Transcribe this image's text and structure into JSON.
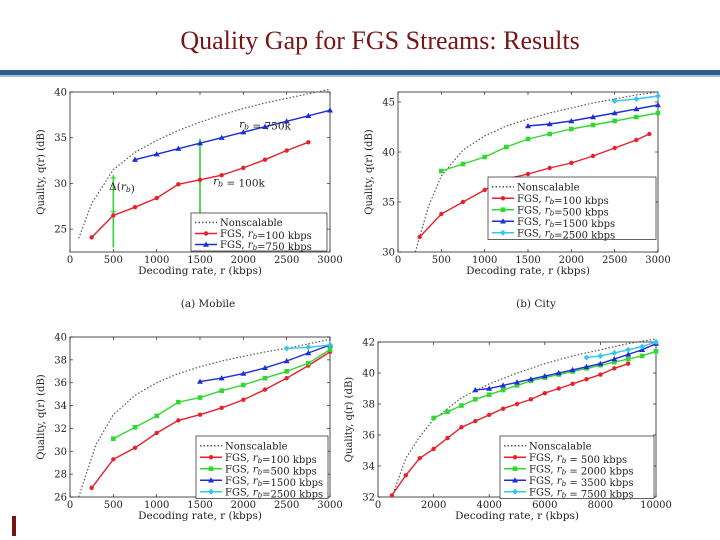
{
  "slide": {
    "title": "Quality Gap for FGS Streams: Results"
  },
  "colors": {
    "title": "#7a1414",
    "rule": "#2e5c93",
    "nonscalable": "#555555",
    "red": "#e8202a",
    "green": "#33d633",
    "blue": "#1c2fd6",
    "cyan": "#35c8ea",
    "annotation_green": "#2fd12f"
  },
  "chart_data": [
    {
      "id": "mobile",
      "type": "line",
      "caption": "(a) Mobile",
      "xlabel": "Decoding rate, r (kbps)",
      "ylabel": "Quality, q(r) (dB)",
      "xlim": [
        0,
        3000
      ],
      "ylim": [
        22.5,
        40
      ],
      "xticks": [
        0,
        500,
        1000,
        1500,
        2000,
        2500,
        3000
      ],
      "yticks": [
        25,
        30,
        35,
        40
      ],
      "legend_position": "bottom-right",
      "series": [
        {
          "name": "Nonscalable",
          "color": "nonscalable",
          "style": "dotted",
          "marker": "none",
          "x": [
            100,
            250,
            500,
            750,
            1000,
            1250,
            1500,
            1750,
            2000,
            2250,
            2500,
            2750,
            3000
          ],
          "y": [
            24,
            27.8,
            31.5,
            33.4,
            34.7,
            35.8,
            36.7,
            37.5,
            38.2,
            38.8,
            39.3,
            39.8,
            40.3
          ]
        },
        {
          "name": "FGS, r_b=100 kbps",
          "color": "red",
          "style": "solid",
          "marker": "circle",
          "x": [
            250,
            500,
            750,
            1000,
            1250,
            1500,
            1750,
            2000,
            2250,
            2500,
            2750
          ],
          "y": [
            24.1,
            26.5,
            27.4,
            28.4,
            29.9,
            30.4,
            30.9,
            31.7,
            32.6,
            33.6,
            34.5
          ]
        },
        {
          "name": "FGS, r_b=750 kbps",
          "color": "blue",
          "style": "solid",
          "marker": "triangle",
          "x": [
            750,
            1000,
            1250,
            1500,
            1750,
            2000,
            2250,
            2500,
            2750,
            3000
          ],
          "y": [
            32.6,
            33.2,
            33.8,
            34.4,
            35.0,
            35.6,
            36.2,
            36.8,
            37.4,
            38.0
          ]
        }
      ],
      "annotations": [
        {
          "label": "r_b = 750k",
          "x": 2250,
          "y": 36.1
        },
        {
          "label": "r_b = 100k",
          "x": 1950,
          "y": 29.9
        },
        {
          "label": "Δ(r_b)",
          "x": 600,
          "y": 29.3
        }
      ],
      "guides": [
        {
          "x": 500,
          "y_from": 23,
          "y_to": 30.9
        },
        {
          "x": 1500,
          "y_from": 23,
          "y_to": 34.9
        }
      ]
    },
    {
      "id": "city",
      "type": "line",
      "caption": "(b) City",
      "xlabel": "Decoding rate, r (kbps)",
      "ylabel": "Quality, q(r) (dB)",
      "xlim": [
        0,
        3000
      ],
      "ylim": [
        30,
        46
      ],
      "xticks": [
        0,
        500,
        1000,
        1500,
        2000,
        2500,
        3000
      ],
      "yticks": [
        30,
        35,
        40,
        45
      ],
      "legend_position": "bottom-right",
      "series": [
        {
          "name": "Nonscalable",
          "color": "nonscalable",
          "style": "dotted",
          "marker": "none",
          "x": [
            200,
            350,
            500,
            750,
            1000,
            1250,
            1500,
            1750,
            2000,
            2250,
            2500,
            2750,
            3000
          ],
          "y": [
            30,
            34.5,
            37.6,
            40.2,
            41.6,
            42.6,
            43.3,
            43.9,
            44.4,
            44.9,
            45.3,
            45.7,
            46.0
          ]
        },
        {
          "name": "FGS, r_b=100 kbps",
          "color": "red",
          "style": "solid",
          "marker": "circle",
          "x": [
            250,
            500,
            750,
            1000,
            1250,
            1500,
            1750,
            2000,
            2250,
            2500,
            2750,
            2900
          ],
          "y": [
            31.5,
            33.8,
            35.0,
            36.2,
            37.3,
            37.8,
            38.4,
            38.9,
            39.6,
            40.4,
            41.2,
            41.8
          ]
        },
        {
          "name": "FGS, r_b=500 kbps",
          "color": "green",
          "style": "solid",
          "marker": "square",
          "x": [
            500,
            750,
            1000,
            1250,
            1500,
            1750,
            2000,
            2250,
            2500,
            2750,
            3000
          ],
          "y": [
            38.1,
            38.8,
            39.5,
            40.5,
            41.3,
            41.8,
            42.3,
            42.7,
            43.1,
            43.5,
            43.9
          ]
        },
        {
          "name": "FGS, r_b=1500 kbps",
          "color": "blue",
          "style": "solid",
          "marker": "triangle",
          "x": [
            1500,
            1750,
            2000,
            2250,
            2500,
            2750,
            3000
          ],
          "y": [
            42.6,
            42.8,
            43.1,
            43.5,
            43.9,
            44.3,
            44.7
          ]
        },
        {
          "name": "FGS, r_b=2500 kbps",
          "color": "cyan",
          "style": "solid",
          "marker": "diamond",
          "x": [
            2500,
            2750,
            3000
          ],
          "y": [
            45.1,
            45.3,
            45.6
          ]
        }
      ]
    },
    {
      "id": "panel-c",
      "type": "line",
      "caption": "",
      "xlabel": "Decoding rate, r (kbps)",
      "ylabel": "Quality, q(r) (dB)",
      "xlim": [
        0,
        3000
      ],
      "ylim": [
        26,
        40
      ],
      "xticks": [
        0,
        500,
        1000,
        1500,
        2000,
        2500,
        3000
      ],
      "yticks": [
        26,
        28,
        30,
        32,
        34,
        36,
        38,
        40
      ],
      "legend_position": "bottom-right",
      "series": [
        {
          "name": "Nonscalable",
          "color": "nonscalable",
          "style": "dotted",
          "marker": "none",
          "x": [
            100,
            300,
            500,
            750,
            1000,
            1250,
            1500,
            1750,
            2000,
            2250,
            2500,
            2750,
            3000
          ],
          "y": [
            26,
            30.6,
            33.2,
            34.9,
            36.0,
            36.8,
            37.4,
            37.9,
            38.3,
            38.7,
            39.0,
            39.4,
            39.8
          ]
        },
        {
          "name": "FGS, r_b=100 kbps",
          "color": "red",
          "style": "solid",
          "marker": "circle",
          "x": [
            250,
            500,
            750,
            1000,
            1250,
            1500,
            1750,
            2000,
            2250,
            2500,
            2750,
            3000
          ],
          "y": [
            26.8,
            29.3,
            30.3,
            31.6,
            32.7,
            33.2,
            33.8,
            34.5,
            35.4,
            36.4,
            37.5,
            38.7
          ]
        },
        {
          "name": "FGS, r_b=500 kbps",
          "color": "green",
          "style": "solid",
          "marker": "square",
          "x": [
            500,
            750,
            1000,
            1250,
            1500,
            1750,
            2000,
            2250,
            2500,
            2750,
            3000
          ],
          "y": [
            31.1,
            32.1,
            33.1,
            34.3,
            34.7,
            35.3,
            35.8,
            36.4,
            37.0,
            37.7,
            38.9
          ]
        },
        {
          "name": "FGS, r_b=1500 kbps",
          "color": "blue",
          "style": "solid",
          "marker": "triangle",
          "x": [
            1500,
            1750,
            2000,
            2250,
            2500,
            2750,
            3000
          ],
          "y": [
            36.1,
            36.4,
            36.8,
            37.3,
            37.9,
            38.6,
            39.3
          ]
        },
        {
          "name": "FGS, r_b=2500 kbps",
          "color": "cyan",
          "style": "solid",
          "marker": "diamond",
          "x": [
            2500,
            2750,
            3000
          ],
          "y": [
            39.0,
            39.1,
            39.3
          ]
        }
      ]
    },
    {
      "id": "panel-d",
      "type": "line",
      "caption": "",
      "xlabel": "Decoding rate, r (kbps)",
      "ylabel": "Quality, q(r) (dB)",
      "xlim": [
        0,
        10000
      ],
      "ylim": [
        32,
        42
      ],
      "xticks": [
        0,
        2000,
        4000,
        6000,
        8000,
        10000
      ],
      "yticks": [
        32,
        34,
        36,
        38,
        40,
        42
      ],
      "legend_position": "bottom-right",
      "series": [
        {
          "name": "Nonscalable",
          "color": "nonscalable",
          "style": "dotted",
          "marker": "none",
          "x": [
            500,
            1000,
            1500,
            2000,
            3000,
            4000,
            5000,
            6000,
            7000,
            8000,
            9000,
            10000
          ],
          "y": [
            32,
            34.5,
            35.9,
            37.0,
            38.4,
            39.3,
            40.0,
            40.6,
            41.1,
            41.5,
            41.9,
            42.2
          ]
        },
        {
          "name": "FGS, r_b = 500 kbps",
          "color": "red",
          "style": "solid",
          "marker": "circle",
          "x": [
            500,
            1000,
            1500,
            2000,
            2500,
            3000,
            3500,
            4000,
            4500,
            5000,
            5500,
            6000,
            6500,
            7000,
            7500,
            8000,
            8500,
            9000
          ],
          "y": [
            32.1,
            33.4,
            34.5,
            35.1,
            35.8,
            36.5,
            36.9,
            37.3,
            37.7,
            38.0,
            38.3,
            38.7,
            39.0,
            39.3,
            39.6,
            39.9,
            40.3,
            40.6
          ]
        },
        {
          "name": "FGS, r_b = 2000 kbps",
          "color": "green",
          "style": "solid",
          "marker": "square",
          "x": [
            2000,
            2500,
            3000,
            3500,
            4000,
            4500,
            5000,
            5500,
            6000,
            6500,
            7000,
            7500,
            8000,
            8500,
            9000,
            9500,
            10000
          ],
          "y": [
            37.1,
            37.5,
            37.9,
            38.3,
            38.6,
            38.9,
            39.2,
            39.5,
            39.7,
            39.9,
            40.1,
            40.3,
            40.5,
            40.7,
            40.9,
            41.1,
            41.4
          ]
        },
        {
          "name": "FGS, r_b = 3500 kbps",
          "color": "blue",
          "style": "solid",
          "marker": "triangle",
          "x": [
            3500,
            4000,
            4500,
            5000,
            5500,
            6000,
            6500,
            7000,
            7500,
            8000,
            8500,
            9000,
            9500,
            10000
          ],
          "y": [
            38.9,
            39.0,
            39.2,
            39.4,
            39.6,
            39.8,
            40.0,
            40.2,
            40.4,
            40.6,
            40.9,
            41.2,
            41.5,
            41.9
          ]
        },
        {
          "name": "FGS, r_b = 7500 kbps",
          "color": "cyan",
          "style": "solid",
          "marker": "diamond",
          "x": [
            7500,
            8000,
            8500,
            9000,
            9500,
            10000
          ],
          "y": [
            41.0,
            41.1,
            41.3,
            41.5,
            41.7,
            42.0
          ]
        }
      ]
    }
  ]
}
